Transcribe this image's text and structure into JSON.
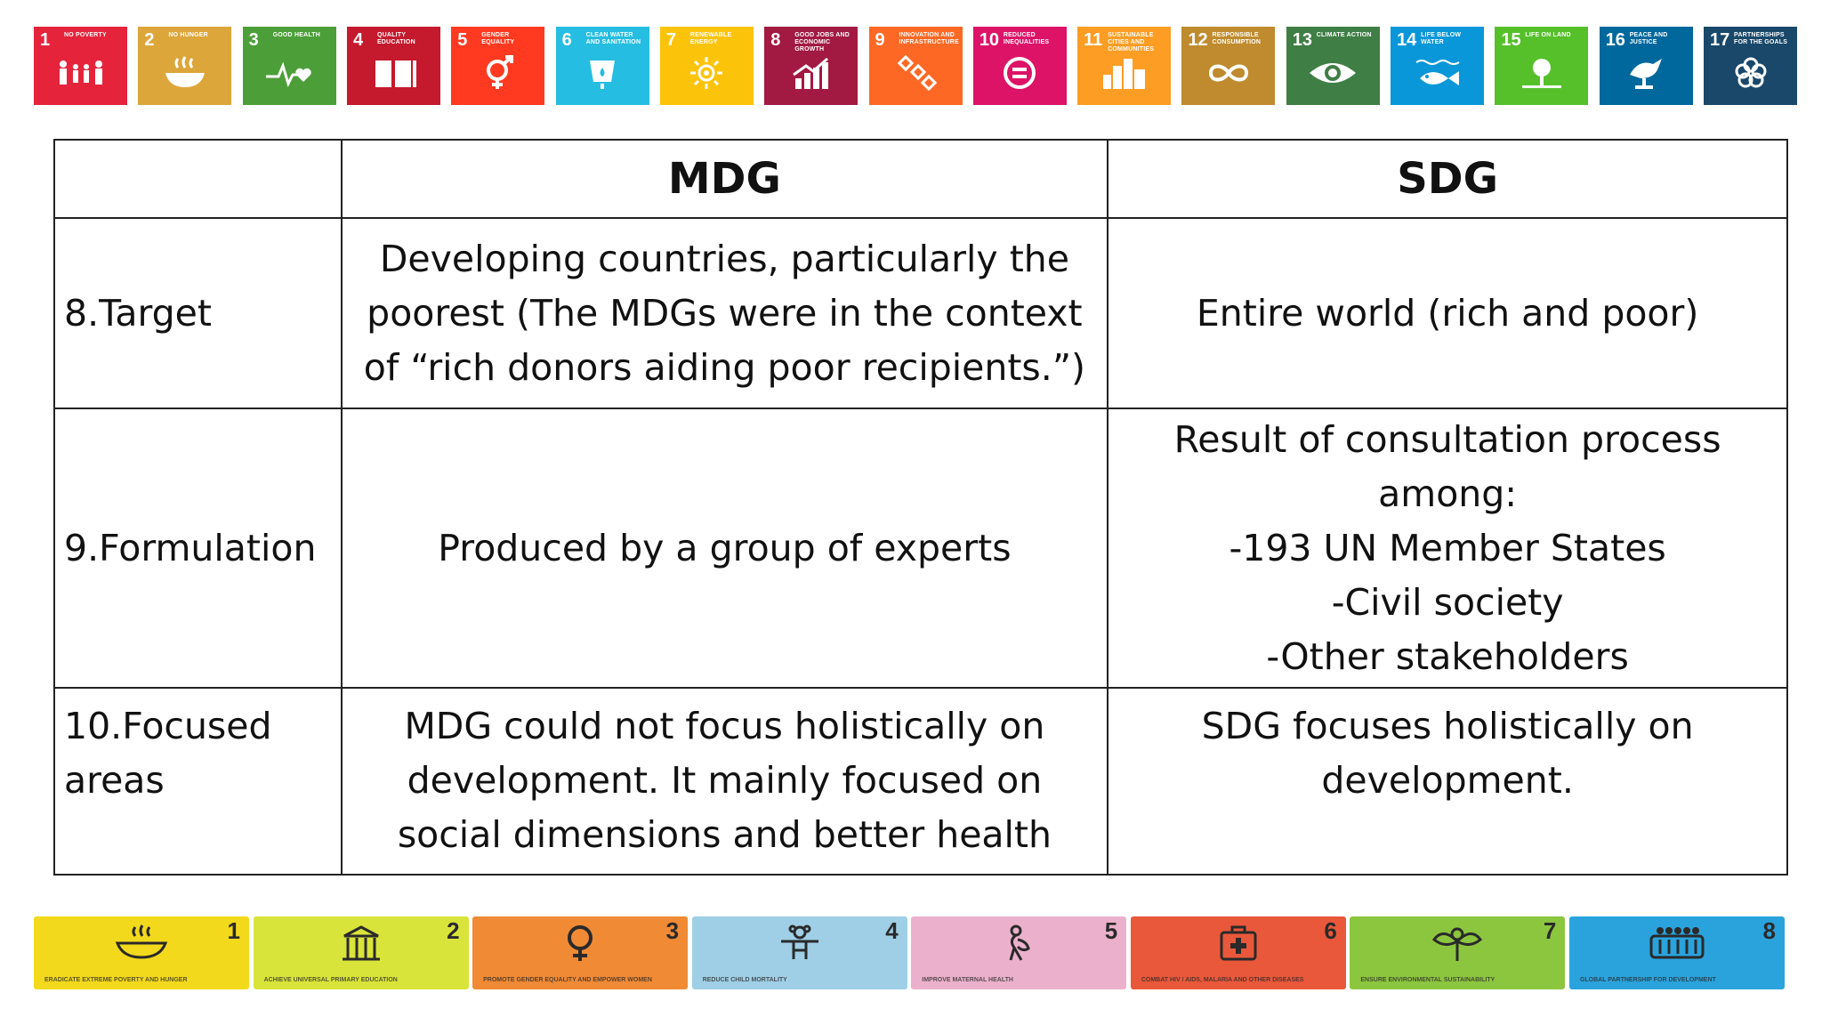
{
  "sdg_goals": [
    {
      "num": "1",
      "title": "No Poverty",
      "color": "#e5243b",
      "icon": "people-icon"
    },
    {
      "num": "2",
      "title": "No Hunger",
      "color": "#dda63a",
      "icon": "bowl-icon"
    },
    {
      "num": "3",
      "title": "Good Health",
      "color": "#4c9f38",
      "icon": "heartbeat-icon"
    },
    {
      "num": "4",
      "title": "Quality Education",
      "color": "#c5192d",
      "icon": "book-icon"
    },
    {
      "num": "5",
      "title": "Gender Equality",
      "color": "#ff3a21",
      "icon": "gender-icon"
    },
    {
      "num": "6",
      "title": "Clean Water and Sanitation",
      "color": "#26bde2",
      "icon": "water-icon"
    },
    {
      "num": "7",
      "title": "Renewable Energy",
      "color": "#fcc30b",
      "icon": "sun-icon"
    },
    {
      "num": "8",
      "title": "Good Jobs and Economic Growth",
      "color": "#a21942",
      "icon": "growth-chart-icon"
    },
    {
      "num": "9",
      "title": "Innovation and Infrastructure",
      "color": "#fd6925",
      "icon": "cubes-icon"
    },
    {
      "num": "10",
      "title": "Reduced Inequalities",
      "color": "#dd1367",
      "icon": "equal-icon"
    },
    {
      "num": "11",
      "title": "Sustainable Cities and Communities",
      "color": "#fd9d24",
      "icon": "city-icon"
    },
    {
      "num": "12",
      "title": "Responsible Consumption",
      "color": "#bf8b2e",
      "icon": "infinity-icon"
    },
    {
      "num": "13",
      "title": "Climate Action",
      "color": "#3f7e44",
      "icon": "eye-globe-icon"
    },
    {
      "num": "14",
      "title": "Life Below Water",
      "color": "#0a97d9",
      "icon": "fish-icon"
    },
    {
      "num": "15",
      "title": "Life on Land",
      "color": "#56c02b",
      "icon": "tree-icon"
    },
    {
      "num": "16",
      "title": "Peace and Justice",
      "color": "#00689d",
      "icon": "dove-icon"
    },
    {
      "num": "17",
      "title": "Partnerships for the Goals",
      "color": "#19486a",
      "icon": "flower-icon"
    }
  ],
  "table": {
    "headers": [
      "",
      "MDG",
      "SDG"
    ],
    "rows": [
      {
        "label": "8.Target",
        "mdg": [
          "Developing countries, particularly the",
          "poorest (The MDGs were in the context",
          "of “rich donors aiding poor recipients.”)"
        ],
        "sdg": [
          "Entire world (rich and poor)"
        ]
      },
      {
        "label": "9.Formulation",
        "mdg": [
          "Produced by a group of experts"
        ],
        "sdg": [
          "Result of consultation process",
          "among:",
          "-193 UN Member States",
          "-Civil society",
          "-Other stakeholders"
        ]
      },
      {
        "label": [
          "10.Focused",
          "areas"
        ],
        "mdg": [
          "MDG could not focus holistically on",
          "development. It mainly focused on",
          "social dimensions and better health"
        ],
        "sdg": [
          "SDG focuses holistically on",
          "development."
        ]
      }
    ]
  },
  "mdg_goals": [
    {
      "num": "1",
      "title": "Eradicate extreme poverty and hunger",
      "color": "#f3d91c",
      "icon": "bowl-icon"
    },
    {
      "num": "2",
      "title": "Achieve universal primary education",
      "color": "#d9e43a",
      "icon": "school-icon"
    },
    {
      "num": "3",
      "title": "Promote gender equality and empower women",
      "color": "#f08a35",
      "icon": "female-icon"
    },
    {
      "num": "4",
      "title": "Reduce child mortality",
      "color": "#9fcfe6",
      "icon": "child-icon"
    },
    {
      "num": "5",
      "title": "Improve maternal health",
      "color": "#ebb1cc",
      "icon": "mother-icon"
    },
    {
      "num": "6",
      "title": "Combat HIV / AIDS, malaria and other diseases",
      "color": "#e9583a",
      "icon": "medical-kit-icon"
    },
    {
      "num": "7",
      "title": "Ensure environmental sustainability",
      "color": "#8cc63f",
      "icon": "plant-icon"
    },
    {
      "num": "8",
      "title": "Global partnership for development",
      "color": "#2aa3dd",
      "icon": "group-icon"
    }
  ]
}
